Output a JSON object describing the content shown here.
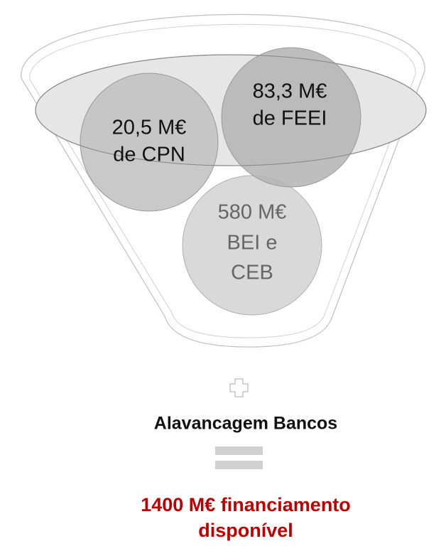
{
  "nodes": [
    {
      "lines": [
        "20,5 M€",
        "de CPN"
      ]
    },
    {
      "lines": [
        "83,3 M€",
        "de FEEI"
      ]
    },
    {
      "lines": [
        "580 M€",
        "BEI e",
        "CEB"
      ]
    }
  ],
  "operator_label": "Alavancagem Bancos",
  "result": {
    "lines": [
      "1400 M€ financiamento",
      "disponível"
    ]
  }
}
